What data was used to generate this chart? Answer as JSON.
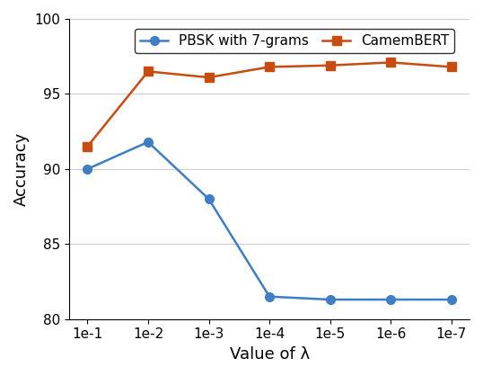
{
  "x_positions": [
    0,
    1,
    2,
    3,
    4,
    5,
    6
  ],
  "x_labels": [
    "1e-1",
    "1e-2",
    "1e-3",
    "1e-4",
    "1e-5",
    "1e-6",
    "1e-7"
  ],
  "pbsk_values": [
    90.0,
    91.8,
    88.0,
    81.5,
    81.3,
    81.3,
    81.3
  ],
  "camembert_values": [
    91.5,
    96.5,
    96.1,
    96.8,
    96.9,
    97.1,
    96.8
  ],
  "pbsk_color": "#3E7EC5",
  "camembert_color": "#C84B10",
  "pbsk_label": "PBSK with 7-grams",
  "camembert_label": "CamemBERT",
  "xlabel": "Value of λ",
  "ylabel": "Accuracy",
  "ylim": [
    80,
    100
  ],
  "yticks": [
    80,
    85,
    90,
    95,
    100
  ],
  "ytick_labels": [
    "80",
    "85",
    "90",
    "95",
    "100"
  ],
  "grid_color": "#cccccc",
  "background_color": "#ffffff",
  "linewidth": 1.8,
  "markersize": 7
}
